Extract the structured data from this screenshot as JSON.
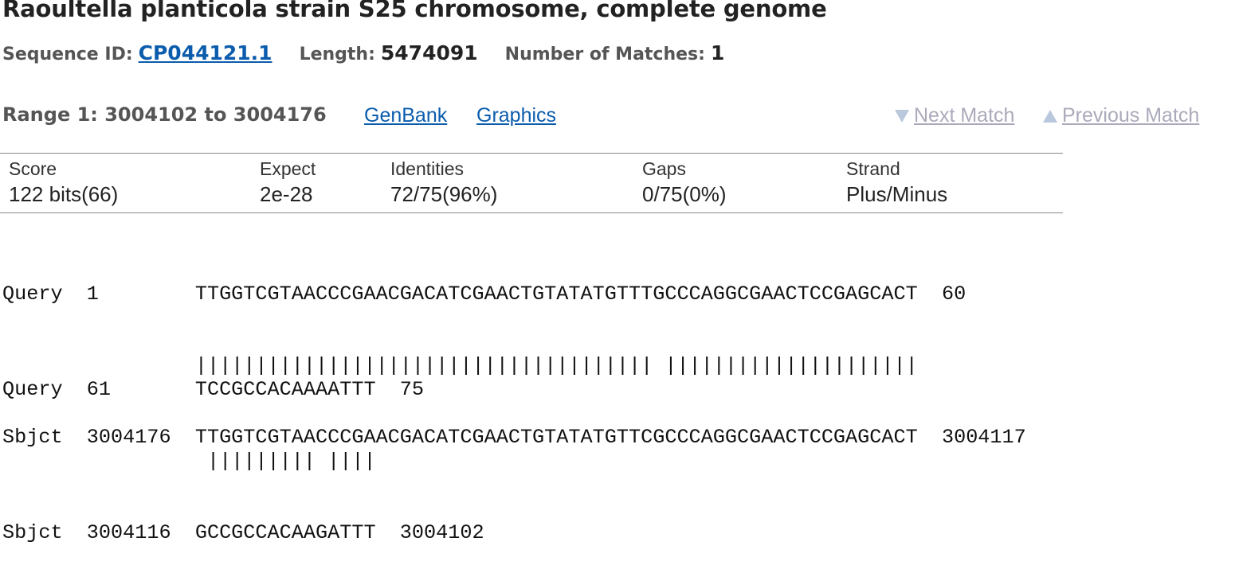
{
  "header": {
    "title": "Raoultella planticola strain S25 chromosome, complete genome",
    "sequence_id_label": "Sequence ID:",
    "sequence_id": "CP044121.1",
    "length_label": "Length:",
    "length": "5474091",
    "matches_label": "Number of Matches:",
    "matches": "1"
  },
  "range": {
    "label": "Range 1: 3004102 to 3004176",
    "genbank": "GenBank",
    "graphics": "Graphics",
    "next_match": "Next Match",
    "previous_match": "Previous Match"
  },
  "stats": {
    "score_h": "Score",
    "score_v": "122 bits(66)",
    "expect_h": "Expect",
    "expect_v": "2e-28",
    "identities_h": "Identities",
    "identities_v": "72/75(96%)",
    "gaps_h": "Gaps",
    "gaps_v": "0/75(0%)",
    "strand_h": "Strand",
    "strand_v": "Plus/Minus"
  },
  "alignment": {
    "block1": {
      "query": "Query  1        TTGGTCGTAACCCGAACGACATCGAACTGTATATGTTTGCCCAGGCGAACTCCGAGCACT  60",
      "match": "                |||||||||||||||||||||||||||||||||||||| |||||||||||||||||||||",
      "sbjct": "Sbjct  3004176  TTGGTCGTAACCCGAACGACATCGAACTGTATATGTTCGCCCAGGCGAACTCCGAGCACT  3004117"
    },
    "block2": {
      "query": "Query  61       TCCGCCACAAAATTT  75",
      "match": "                 ||||||||| ||||",
      "sbjct": "Sbjct  3004116  GCCGCCACAAGATTT  3004102"
    }
  }
}
